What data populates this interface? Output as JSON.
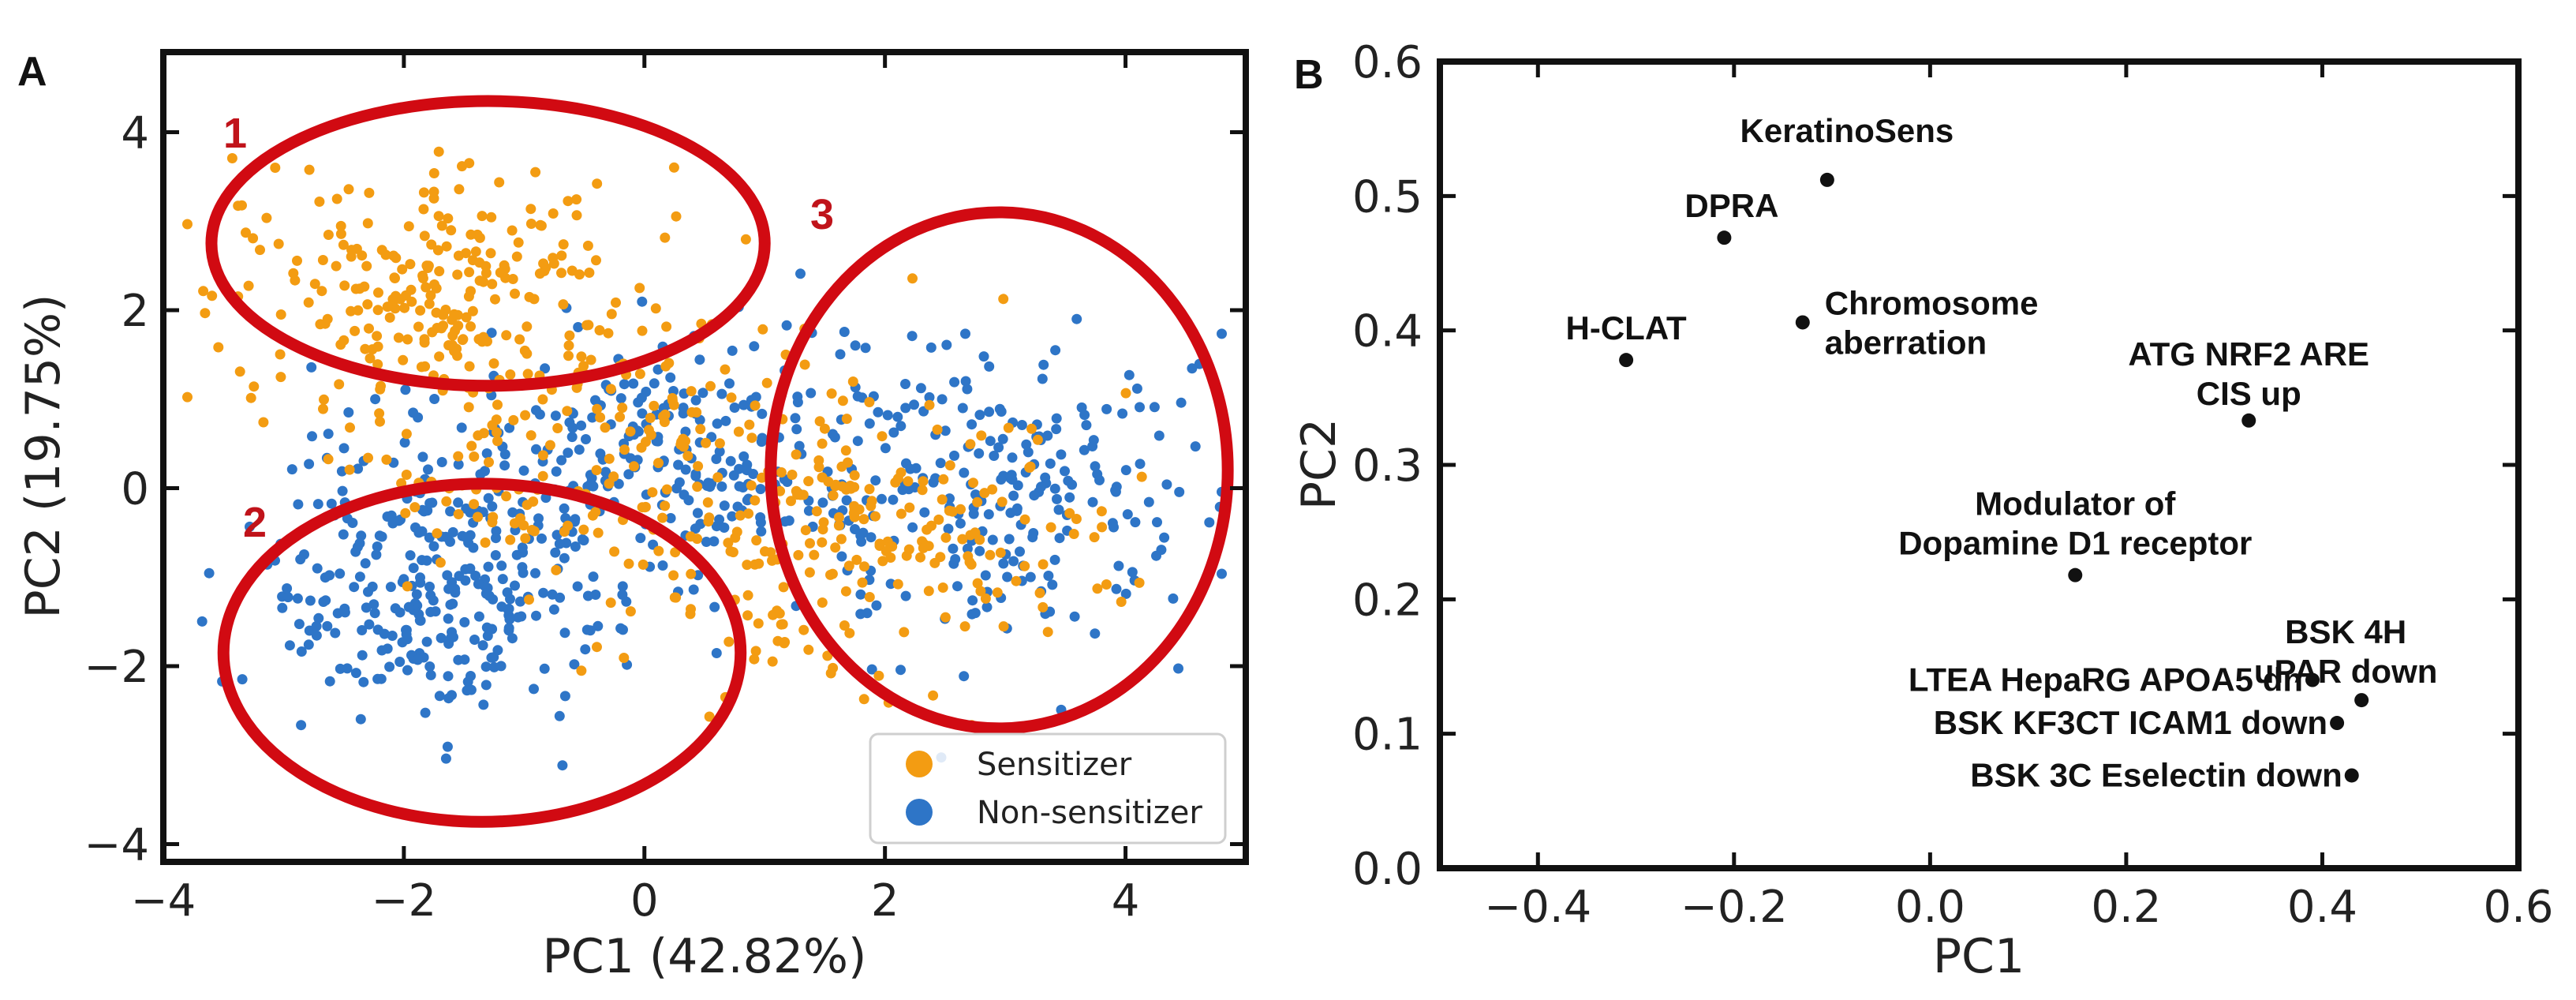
{
  "colors": {
    "sensitizer": "#f39c12",
    "non_sensitizer": "#2e75c7",
    "ellipse": "#d10a12",
    "point_b": "#111111"
  },
  "panel_letters": {
    "a": "A",
    "b": "B"
  },
  "chart_data": [
    {
      "id": "A",
      "type": "scatter",
      "title": "",
      "xlabel": "PC1 (42.82%)",
      "ylabel": "PC2 (19.75%)",
      "xlim": [
        -4,
        5
      ],
      "ylim": [
        -4.2,
        4.9
      ],
      "xticks": [
        -4,
        -2,
        0,
        2,
        4
      ],
      "xtick_labels": [
        "−4",
        "−2",
        "0",
        "2",
        "4"
      ],
      "yticks": [
        -4,
        -2,
        0,
        2,
        4
      ],
      "ytick_labels": [
        "−4",
        "−2",
        "0",
        "2",
        "4"
      ],
      "grid": false,
      "legend_position": "bottom-right",
      "series": [
        {
          "name": "Sensitizer",
          "color": "#f39c12",
          "n_points": 640
        },
        {
          "name": "Non-sensitizer",
          "color": "#2e75c7",
          "n_points": 780
        }
      ],
      "annotations": [
        {
          "label": "1",
          "cx": -1.3,
          "cy": 2.75,
          "rx": 2.3,
          "ry": 1.6
        },
        {
          "label": "2",
          "cx": -1.35,
          "cy": -1.85,
          "rx": 2.15,
          "ry": 1.9
        },
        {
          "label": "3",
          "cx": 2.95,
          "cy": 0.2,
          "rx": 1.9,
          "ry": 2.9
        }
      ]
    },
    {
      "id": "B",
      "type": "scatter",
      "title": "",
      "xlabel": "PC1",
      "ylabel": "PC2",
      "xlim": [
        -0.5,
        0.6
      ],
      "ylim": [
        0.0,
        0.6
      ],
      "xticks": [
        -0.4,
        -0.2,
        0.0,
        0.2,
        0.4,
        0.6
      ],
      "xtick_labels": [
        "−0.4",
        "−0.2",
        "0.0",
        "0.2",
        "0.4",
        "0.6"
      ],
      "yticks": [
        0.0,
        0.1,
        0.2,
        0.3,
        0.4,
        0.5,
        0.6
      ],
      "ytick_labels": [
        "0.0",
        "0.1",
        "0.2",
        "0.3",
        "0.4",
        "0.5",
        "0.6"
      ],
      "grid": false,
      "points": [
        {
          "label": [
            "KeratinoSens"
          ],
          "x": -0.105,
          "y": 0.512,
          "anchor": "above"
        },
        {
          "label": [
            "DPRA"
          ],
          "x": -0.21,
          "y": 0.469,
          "anchor": "above-left"
        },
        {
          "label": [
            "H-CLAT"
          ],
          "x": -0.31,
          "y": 0.378,
          "anchor": "above"
        },
        {
          "label": [
            "Chromosome",
            "aberration"
          ],
          "x": -0.13,
          "y": 0.406,
          "anchor": "right"
        },
        {
          "label": [
            "ATG NRF2 ARE",
            "CIS up"
          ],
          "x": 0.325,
          "y": 0.333,
          "anchor": "above"
        },
        {
          "label": [
            "Modulator of",
            "Dopamine D1 receptor"
          ],
          "x": 0.148,
          "y": 0.218,
          "anchor": "above"
        },
        {
          "label": [
            "BSK 4H",
            "uPAR down"
          ],
          "x": 0.44,
          "y": 0.125,
          "anchor": "above"
        },
        {
          "label": [
            "LTEA HepaRG APOA5 dn"
          ],
          "x": 0.39,
          "y": 0.14,
          "anchor": "left"
        },
        {
          "label": [
            "BSK KF3CT ICAM1 down"
          ],
          "x": 0.415,
          "y": 0.108,
          "anchor": "left"
        },
        {
          "label": [
            "BSK 3C Eselectin down"
          ],
          "x": 0.43,
          "y": 0.069,
          "anchor": "left"
        }
      ]
    }
  ]
}
